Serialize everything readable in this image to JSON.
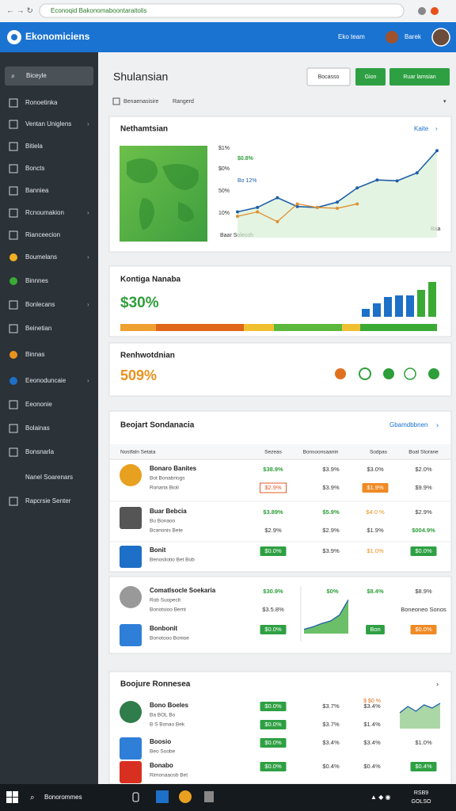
{
  "browser": {
    "url": "Econoqid Bakonomaboontaraitolis"
  },
  "header": {
    "logo": "Ekonomiciens",
    "team": "Eko team",
    "user": "Barek"
  },
  "sidebar": {
    "search": "Biceyle",
    "items": [
      "Ronoetinka",
      "Ventan Uniglens",
      "Bitiela",
      "Boncts",
      "Banniea",
      "Rcnoumakion",
      "Rianceecion",
      "Boumelans",
      "Binnnes",
      "Bonlecans",
      "Beinetian",
      "Binnas",
      "Eeonoduncaie",
      "Eeononie",
      "Bolainas",
      "Bonsnarla",
      "Nanel Soarenars",
      "Rapcrsie Senter"
    ]
  },
  "page": {
    "title": "Shulansian",
    "buttons": [
      "Bocasso",
      "Gion",
      "Ruar lamsian"
    ],
    "breadcrumb": [
      "Benaenasisire",
      "Rangerd"
    ]
  },
  "overview": {
    "title": "Nethamtsian",
    "link": "Kaite",
    "axis_labels": [
      "$1%",
      "$0%",
      "50%",
      "10%"
    ],
    "annotations": [
      "$0.8%",
      "Bo  12%",
      "Baar Solecoh",
      "Baa"
    ],
    "ylim": [
      0,
      100
    ],
    "series": [
      {
        "color": "#1f5fa8",
        "values": [
          29,
          34,
          45,
          35,
          34,
          40,
          56,
          65,
          64,
          73,
          98
        ]
      },
      {
        "color": "#e09030",
        "values": [
          24,
          29,
          18,
          38,
          34,
          33,
          38,
          null,
          null,
          null,
          null
        ]
      }
    ]
  },
  "kpi": {
    "title": "Kontiga Nanaba",
    "value": "$30%",
    "ylim": [
      0,
      50
    ],
    "values": [
      10,
      17,
      25,
      27,
      27,
      34,
      44
    ],
    "colors": [
      "#1e6fc7",
      "#1e6fc7",
      "#1e6fc7",
      "#1e6fc7",
      "#1e6fc7",
      "#3aaa35",
      "#3aaa35"
    ]
  },
  "kpi2": {
    "title": "Renhwotdnian",
    "value": "509%"
  },
  "table1": {
    "title": "Beojart Sondanacia",
    "link": "Gbamdbbnen",
    "columns": [
      "Nostfaln Setata",
      "Sezeas",
      "Bonsoonsaanin",
      "Sodpas",
      "Boal Storane"
    ],
    "rows": [
      {
        "name": "Bonaro Banites",
        "sub": [
          "Bot Bonabriogs",
          "Ronaria Bioli"
        ],
        "lines": [
          [
            [
              "$38.9%",
              "g"
            ],
            [
              "$3.9%",
              "p"
            ],
            [
              "$3.0%",
              "p"
            ],
            [
              "$2.0%",
              "p"
            ]
          ],
          [
            [
              "$2.9%",
              "ro"
            ],
            [
              "$3.9%",
              "p"
            ],
            [
              "$1.9%",
              "ob"
            ],
            [
              "$9.9%",
              "p"
            ]
          ]
        ]
      },
      {
        "name": "Buar Bebcia",
        "sub": [
          "Bu Bonaoo",
          "Bcanonis Bete"
        ],
        "lines": [
          [
            [
              "$3.89%",
              "g"
            ],
            [
              "$5.9%",
              "g"
            ],
            [
              "$4.0 %",
              "o"
            ],
            [
              "$2.9%",
              "p"
            ]
          ],
          [
            [
              "$2.9%",
              "p"
            ],
            [
              "$2.9%",
              "p"
            ],
            [
              "$1.9%",
              "p"
            ],
            [
              "$004.9%",
              "g"
            ]
          ]
        ]
      },
      {
        "name": "Bonit",
        "sub": [
          "Benosliotio Bet Bob"
        ],
        "lines": [
          [
            [
              "$0.0%",
              "gb"
            ],
            [
              "$3.9%",
              "p"
            ],
            [
              "$1.0%",
              "o"
            ],
            [
              "$0.0%",
              "gb"
            ]
          ]
        ]
      }
    ]
  },
  "table2": {
    "rows": [
      {
        "name": "Comatlsocle Soekaria",
        "sub": [
          "Rob Suopeclt",
          "Bonotsioo Bemt"
        ],
        "lines": [
          [
            [
              "$30.9%",
              "g"
            ],
            [
              "$0%",
              "g"
            ],
            [
              "$8.4%",
              "g"
            ],
            [
              "$8.9%",
              "p"
            ]
          ],
          [
            [
              "$3.5.8%",
              "p"
            ],
            null,
            null,
            [
              "Boneoneo Sonos",
              "p"
            ]
          ]
        ]
      },
      {
        "name": "Bonbonit",
        "sub": [
          "Bonotooo Bonioe"
        ],
        "lines": [
          [
            [
              "$0.0%",
              "gb"
            ],
            null,
            [
              "Bon",
              "gb"
            ],
            [
              "$0.0%",
              "obb"
            ]
          ]
        ]
      }
    ],
    "chart": {
      "ylim": [
        0,
        45
      ],
      "values": [
        5,
        8,
        12,
        15,
        22,
        40
      ],
      "color": "#3aaa35"
    }
  },
  "table3": {
    "title": "Boojure Ronnesea",
    "header_note": "$ $0 %",
    "rows": [
      {
        "name": "Bono Boeles",
        "sub": [
          "Ba BOL Bo",
          "B  S Bonao Bek"
        ],
        "lines": [
          [
            [
              "$0.0%",
              "gb"
            ],
            [
              "$3.7%",
              "p"
            ],
            [
              "$3.4%",
              "p"
            ],
            null
          ],
          [
            [
              "$0.0%",
              "gb"
            ],
            [
              "$3.7%",
              "p"
            ],
            [
              "$1.4%",
              "p"
            ],
            null
          ]
        ]
      },
      {
        "name": "Boosio",
        "sub": [
          "Beo Soobe"
        ],
        "lines": [
          [
            [
              "$0.0%",
              "gb"
            ],
            [
              "$3.4%",
              "p"
            ],
            [
              "$3.4%",
              "p"
            ],
            [
              "$1.0%",
              "p"
            ]
          ]
        ]
      },
      {
        "name": "Bonabo",
        "sub": [
          "Rimonaaosb Bet"
        ],
        "lines": [
          [
            [
              "$0.0%",
              "gb"
            ],
            [
              "$0.4%",
              "p"
            ],
            [
              "$0.4%",
              "p"
            ],
            [
              "$0.4%",
              "gb"
            ]
          ]
        ]
      }
    ],
    "chart": {
      "ylim": [
        0,
        40
      ],
      "values": [
        20,
        28,
        22,
        30,
        26,
        32
      ],
      "color": "#8fc98a"
    }
  },
  "taskbar": {
    "search": "Bonorommes",
    "clock": [
      "RSB9",
      "GOLSO"
    ]
  }
}
